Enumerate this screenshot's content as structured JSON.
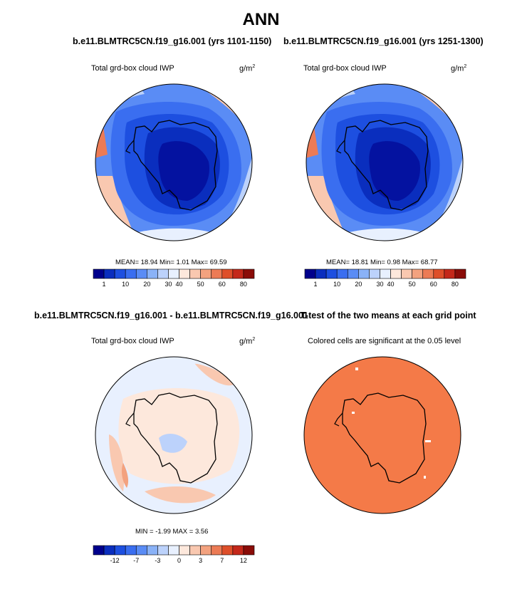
{
  "figure": {
    "title": "ANN"
  },
  "panels": [
    {
      "title": "b.e11.BLMTRC5CN.f19_g16.001 (yrs 1101-1150)",
      "subtitle": "Total grd-box cloud IWP",
      "units": "g/m",
      "units_exponent": "2",
      "stats": "MEAN= 18.94  Min=  1.01  Max= 69.59",
      "colorbar": {
        "colors": [
          "#00008c",
          "#0a2ebe",
          "#1d4fe0",
          "#3a6ef0",
          "#5a8cf5",
          "#8ab2f7",
          "#bcd2fb",
          "#e8f0fe",
          "#fde8dc",
          "#f9c8b0",
          "#f3a27f",
          "#ec7b55",
          "#de4f2a",
          "#c4281a",
          "#8a0c08"
        ],
        "labels": [
          "1",
          "10",
          "20",
          "30",
          "40",
          "50",
          "60",
          "80"
        ]
      }
    },
    {
      "title": "b.e11.BLMTRC5CN.f19_g16.001 (yrs 1251-1300)",
      "subtitle": "Total grd-box cloud IWP",
      "units": "g/m",
      "units_exponent": "2",
      "stats": "MEAN= 18.81  Min=  0.98  Max= 68.77",
      "colorbar": {
        "colors": [
          "#00008c",
          "#0a2ebe",
          "#1d4fe0",
          "#3a6ef0",
          "#5a8cf5",
          "#8ab2f7",
          "#bcd2fb",
          "#e8f0fe",
          "#fde8dc",
          "#f9c8b0",
          "#f3a27f",
          "#ec7b55",
          "#de4f2a",
          "#c4281a",
          "#8a0c08"
        ],
        "labels": [
          "1",
          "10",
          "20",
          "30",
          "40",
          "50",
          "60",
          "80"
        ]
      }
    },
    {
      "title": "b.e11.BLMTRC5CN.f19_g16.001 - b.e11.BLMTRC5CN.f19_g16.001",
      "subtitle": "Total grd-box cloud IWP",
      "units": "g/m",
      "units_exponent": "2",
      "stats": "MIN =  -1.99 MAX =  3.56",
      "colorbar": {
        "colors": [
          "#00008c",
          "#0a2ebe",
          "#1d4fe0",
          "#3a6ef0",
          "#5a8cf5",
          "#8ab2f7",
          "#bcd2fb",
          "#e8f0fe",
          "#fde8dc",
          "#f9c8b0",
          "#f3a27f",
          "#ec7b55",
          "#de4f2a",
          "#c4281a",
          "#8a0c08"
        ],
        "labels": [
          "-12",
          "-7",
          "-3",
          "0",
          "3",
          "7",
          "12"
        ]
      }
    },
    {
      "title": "T-test of the two means at each grid point",
      "subtitle": "Colored cells are significant at the 0.05 level",
      "fill_color": "#f47a48"
    }
  ]
}
